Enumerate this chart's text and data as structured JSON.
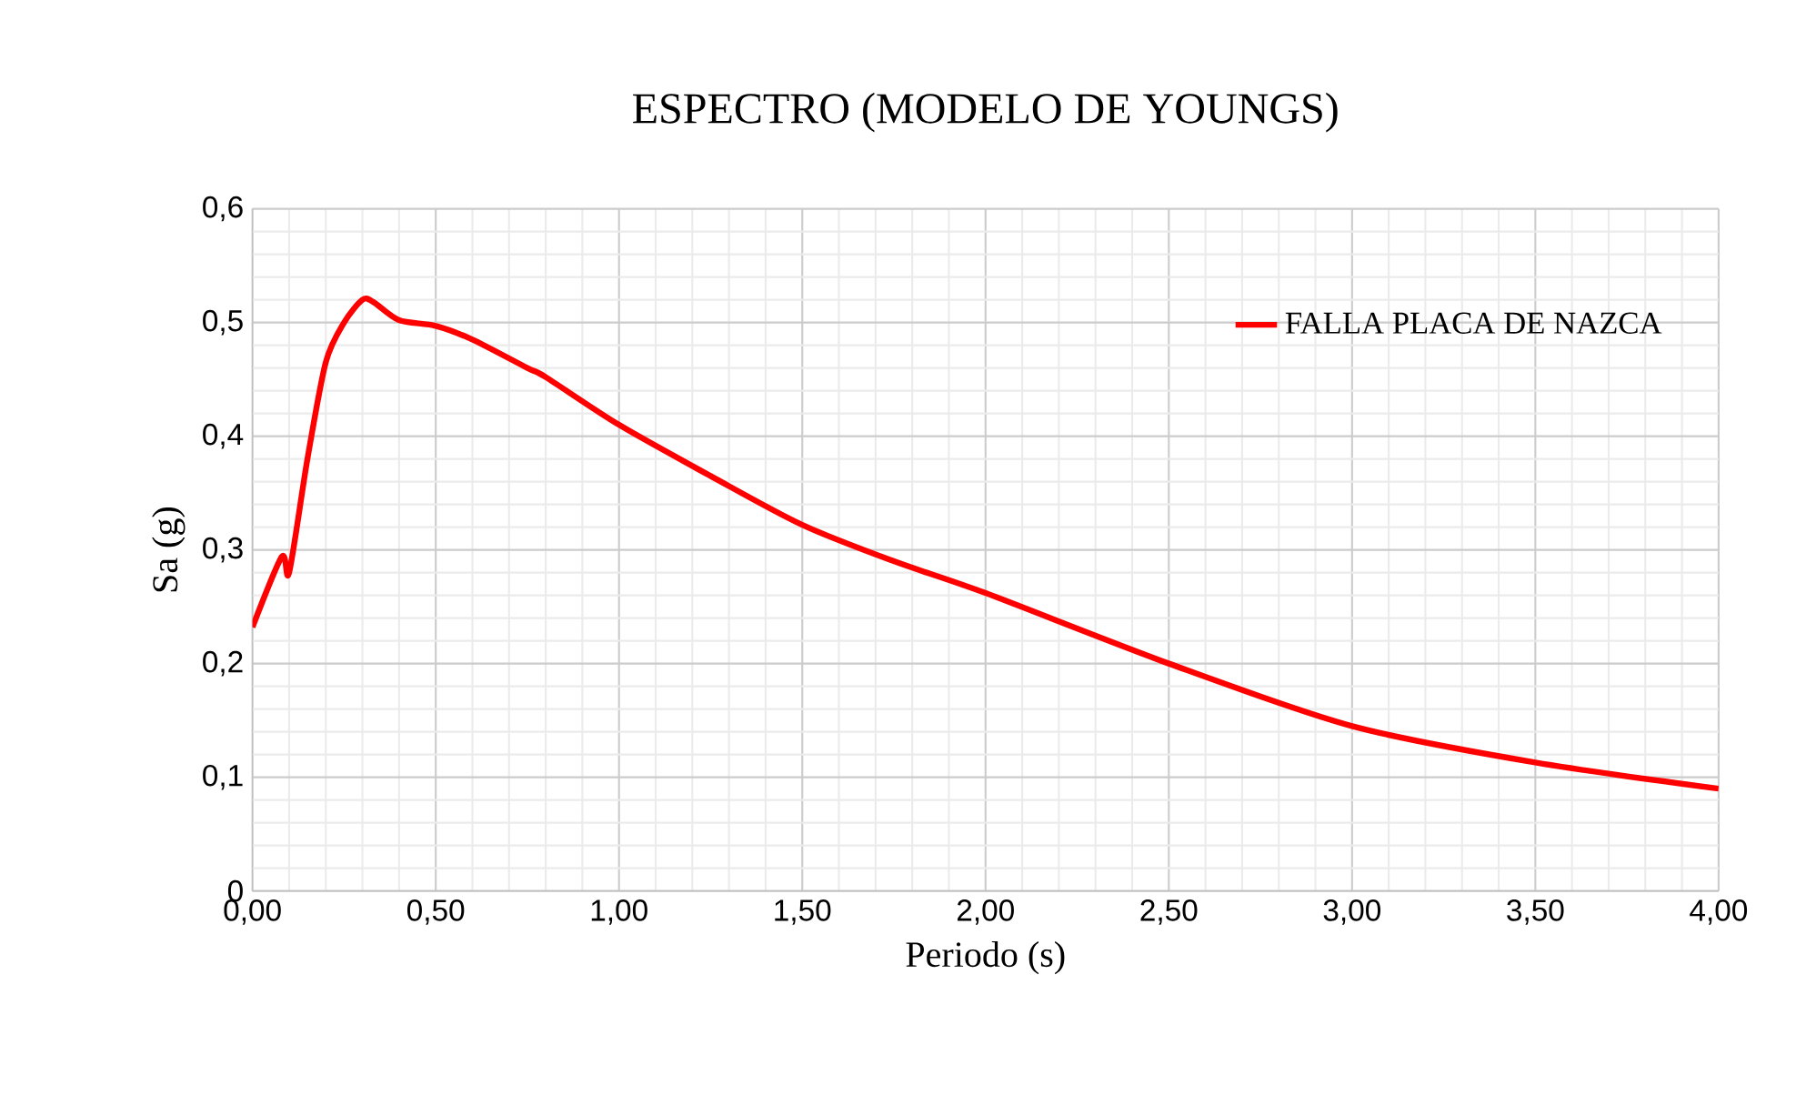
{
  "chart_data": {
    "type": "line",
    "title": "ESPECTRO (MODELO DE YOUNGS)",
    "xlabel": "Periodo (s)",
    "ylabel": "Sa (g)",
    "x": [
      0,
      0.08,
      0.1,
      0.15,
      0.2,
      0.25,
      0.3,
      0.33,
      0.4,
      0.5,
      0.6,
      0.75,
      0.8,
      1.0,
      1.25,
      1.5,
      1.75,
      2.0,
      2.5,
      3.0,
      3.5,
      4.0
    ],
    "series": [
      {
        "name": "FALLA PLACA DE NAZCA",
        "color": "#ff0000",
        "values": [
          0.232,
          0.294,
          0.28,
          0.38,
          0.465,
          0.5,
          0.52,
          0.518,
          0.502,
          0.497,
          0.485,
          0.46,
          0.452,
          0.41,
          0.365,
          0.322,
          0.29,
          0.262,
          0.2,
          0.145,
          0.113,
          0.09
        ]
      }
    ],
    "xlim": [
      0,
      4
    ],
    "ylim": [
      0,
      0.6
    ],
    "xticks": [
      {
        "value": 0,
        "label": "0,00"
      },
      {
        "value": 0.5,
        "label": "0,50"
      },
      {
        "value": 1,
        "label": "1,00"
      },
      {
        "value": 1.5,
        "label": "1,50"
      },
      {
        "value": 2,
        "label": "2,00"
      },
      {
        "value": 2.5,
        "label": "2,50"
      },
      {
        "value": 3,
        "label": "3,00"
      },
      {
        "value": 3.5,
        "label": "3,50"
      },
      {
        "value": 4,
        "label": "4,00"
      }
    ],
    "yticks": [
      0,
      {
        "value": 0.1,
        "label": "0,1"
      },
      {
        "value": 0.2,
        "label": "0,2"
      },
      {
        "value": 0.3,
        "label": "0,3"
      },
      {
        "value": 0.4,
        "label": "0,4"
      },
      {
        "value": 0.5,
        "label": "0,5"
      },
      {
        "value": 0.6,
        "label": "0,6"
      }
    ],
    "grid": true,
    "legend": "top right",
    "marker": "none",
    "line_style": "solid"
  }
}
